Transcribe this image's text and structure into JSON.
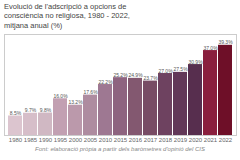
{
  "chart_data": {
    "type": "bar",
    "title": "Evolució de l'adscripció a opcions de\nconsciència no religiosa, 1980 - 2022,\nmitjana anual (%)",
    "caption": "Font: elaboració pròpia a partir dels baròmetres d'opinió del CIS",
    "categories": [
      "1980",
      "1985",
      "1990",
      "1995",
      "2000",
      "2005",
      "2010",
      "2015",
      "2016",
      "2017",
      "2018",
      "2019",
      "2020",
      "2021",
      "2022"
    ],
    "values": [
      8.5,
      9.7,
      9.8,
      16.0,
      13.2,
      17.6,
      22.2,
      25.2,
      24.9,
      23.7,
      27.0,
      27.5,
      30.9,
      37.0,
      39.3
    ],
    "value_labels": [
      "8.5%",
      "9.7%",
      "9.8%",
      "16.0%",
      "13.2%",
      "17.6%",
      "22.2%",
      "25.2%",
      "24.9%",
      "23.7%",
      "27.0%",
      "27.5%",
      "30.9%",
      "37.0%",
      "39.3%"
    ],
    "colors": [
      "#dcc5cf",
      "#d6bec9",
      "#d0b8c3",
      "#c2a0b2",
      "#bb99ab",
      "#ae8ca0",
      "#9e7892",
      "#8e6480",
      "#835870",
      "#784c65",
      "#6e4260",
      "#623858",
      "#572e4e",
      "#8a1f3e",
      "#6e0f28"
    ],
    "ylim": [
      0,
      44
    ],
    "data_labels": true,
    "tick_labels": "x"
  }
}
